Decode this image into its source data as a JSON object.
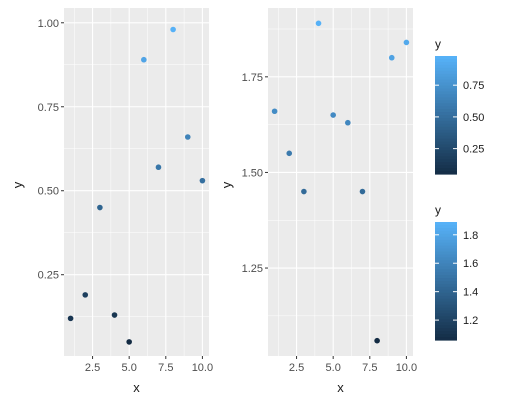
{
  "chart_data": [
    {
      "type": "scatter",
      "xlabel": "x",
      "ylabel": "y",
      "xlim": [
        0.55,
        10.45
      ],
      "ylim": [
        0.008,
        1.044
      ],
      "xticks": [
        2.5,
        5.0,
        7.5,
        10.0
      ],
      "xtick_labels": [
        "2.5",
        "5.0",
        "7.5",
        "10.0"
      ],
      "yticks": [
        0.25,
        0.5,
        0.75,
        1.0
      ],
      "ytick_labels": [
        "0.25",
        "0.50",
        "0.75",
        "1.00"
      ],
      "grid": true,
      "points": [
        {
          "x": 1,
          "y": 0.12
        },
        {
          "x": 2,
          "y": 0.19
        },
        {
          "x": 3,
          "y": 0.45
        },
        {
          "x": 4,
          "y": 0.13
        },
        {
          "x": 5,
          "y": 0.05
        },
        {
          "x": 6,
          "y": 0.89
        },
        {
          "x": 7,
          "y": 0.57
        },
        {
          "x": 8,
          "y": 0.98
        },
        {
          "x": 9,
          "y": 0.66
        },
        {
          "x": 10,
          "y": 0.53
        }
      ],
      "color_by": "y",
      "legend": {
        "title": "y",
        "placement": "right-top",
        "range": [
          0.05,
          0.98
        ],
        "ticks": [
          0.25,
          0.5,
          0.75
        ],
        "tick_labels": [
          "0.25",
          "0.50",
          "0.75"
        ]
      }
    },
    {
      "type": "scatter",
      "xlabel": "x",
      "ylabel": "y",
      "xlim": [
        0.55,
        10.45
      ],
      "ylim": [
        1.02,
        1.93
      ],
      "xticks": [
        2.5,
        5.0,
        7.5,
        10.0
      ],
      "xtick_labels": [
        "2.5",
        "5.0",
        "7.5",
        "10.0"
      ],
      "yticks": [
        1.25,
        1.5,
        1.75
      ],
      "ytick_labels": [
        "1.25",
        "1.50",
        "1.75"
      ],
      "grid": true,
      "points": [
        {
          "x": 1,
          "y": 1.66
        },
        {
          "x": 2,
          "y": 1.55
        },
        {
          "x": 3,
          "y": 1.45
        },
        {
          "x": 4,
          "y": 1.89
        },
        {
          "x": 5,
          "y": 1.65
        },
        {
          "x": 6,
          "y": 1.63
        },
        {
          "x": 7,
          "y": 1.45
        },
        {
          "x": 8,
          "y": 1.06
        },
        {
          "x": 9,
          "y": 1.8
        },
        {
          "x": 10,
          "y": 1.84
        }
      ],
      "color_by": "y",
      "legend": {
        "title": "y",
        "placement": "right-bottom",
        "range": [
          1.06,
          1.89
        ],
        "ticks": [
          1.2,
          1.4,
          1.6,
          1.8
        ],
        "tick_labels": [
          "1.2",
          "1.4",
          "1.6",
          "1.8"
        ]
      }
    }
  ],
  "colors": {
    "panel_background": "#ebebeb",
    "grid_major": "#ffffff",
    "gradient_low": "#132b43",
    "gradient_high": "#56b1f7"
  }
}
